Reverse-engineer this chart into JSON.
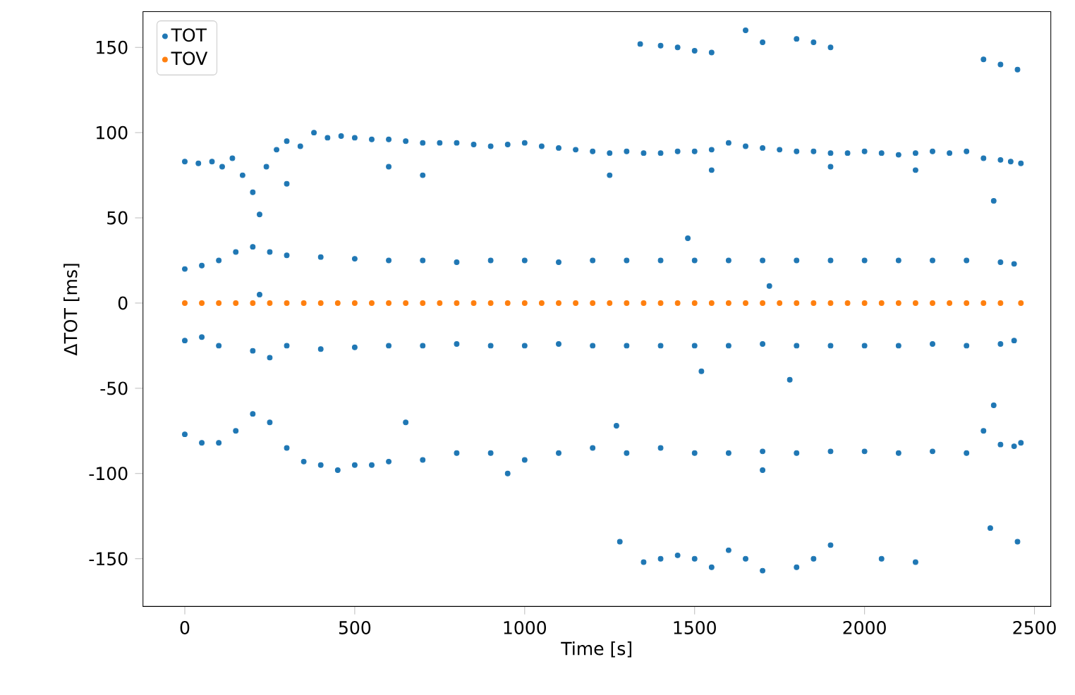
{
  "chart_data": {
    "type": "scatter",
    "xlabel": "Time [s]",
    "ylabel": "ΔTOT [ms]",
    "xlim": [
      -123,
      2548
    ],
    "ylim": [
      -178,
      171
    ],
    "xticks": [
      0,
      500,
      1000,
      1500,
      2000,
      2500
    ],
    "yticks": [
      -150,
      -100,
      -50,
      0,
      50,
      100,
      150
    ],
    "legend": "top left",
    "grid": false,
    "series": [
      {
        "name": "TOT",
        "color": "#1f77b4",
        "x": [
          0,
          40,
          80,
          110,
          140,
          170,
          200,
          220,
          240,
          270,
          300,
          340,
          380,
          420,
          460,
          500,
          550,
          600,
          650,
          700,
          750,
          800,
          850,
          900,
          950,
          1000,
          1050,
          1100,
          1150,
          1200,
          1250,
          1300,
          1350,
          1400,
          1450,
          1500,
          1550,
          1600,
          1650,
          1700,
          1750,
          1800,
          1850,
          1900,
          1950,
          2000,
          2050,
          2100,
          2150,
          2200,
          2250,
          2300,
          2350,
          2380,
          2400,
          2430,
          2460,
          300,
          600,
          1250,
          1900,
          2150,
          1550,
          700,
          1340,
          1400,
          1450,
          1500,
          1550,
          1650,
          1700,
          1800,
          1850,
          1900,
          2350,
          2400,
          2450,
          0,
          50,
          100,
          150,
          200,
          250,
          300,
          400,
          500,
          600,
          700,
          800,
          900,
          1000,
          1100,
          1200,
          1300,
          1400,
          1480,
          1500,
          1600,
          1700,
          1720,
          1800,
          1900,
          2000,
          2100,
          2200,
          2300,
          2400,
          2440,
          220,
          0,
          50,
          100,
          200,
          250,
          300,
          400,
          500,
          600,
          700,
          800,
          900,
          1000,
          1100,
          1200,
          1300,
          1400,
          1500,
          1520,
          1600,
          1700,
          1780,
          1800,
          1900,
          2000,
          2100,
          2200,
          2300,
          2400,
          2440,
          2380,
          0,
          50,
          100,
          150,
          200,
          250,
          300,
          350,
          400,
          450,
          500,
          550,
          600,
          650,
          700,
          800,
          900,
          1000,
          1100,
          1200,
          1270,
          1300,
          1400,
          1500,
          1600,
          1700,
          1800,
          1900,
          2000,
          2100,
          2200,
          2300,
          2350,
          2400,
          2440,
          2460,
          950,
          1700,
          1280,
          1350,
          1400,
          1450,
          1500,
          1550,
          1600,
          1650,
          1700,
          1800,
          1850,
          1900,
          2050,
          2150,
          2370,
          2450
        ],
        "values": [
          83,
          82,
          83,
          80,
          85,
          75,
          65,
          52,
          80,
          90,
          95,
          92,
          100,
          97,
          98,
          97,
          96,
          96,
          95,
          94,
          94,
          94,
          93,
          92,
          93,
          94,
          92,
          91,
          90,
          89,
          88,
          89,
          88,
          88,
          89,
          89,
          90,
          94,
          92,
          91,
          90,
          89,
          89,
          88,
          88,
          89,
          88,
          87,
          88,
          89,
          88,
          89,
          85,
          60,
          84,
          83,
          82,
          70,
          80,
          75,
          80,
          78,
          78,
          75,
          152,
          151,
          150,
          148,
          147,
          160,
          153,
          155,
          153,
          150,
          143,
          140,
          137,
          20,
          22,
          25,
          30,
          33,
          30,
          28,
          27,
          26,
          25,
          25,
          24,
          25,
          25,
          24,
          25,
          25,
          25,
          38,
          25,
          25,
          25,
          10,
          25,
          25,
          25,
          25,
          25,
          25,
          24,
          23,
          5,
          -22,
          -20,
          -25,
          -28,
          -32,
          -25,
          -27,
          -26,
          -25,
          -25,
          -24,
          -25,
          -25,
          -24,
          -25,
          -25,
          -25,
          -25,
          -40,
          -25,
          -24,
          -45,
          -25,
          -25,
          -25,
          -25,
          -24,
          -25,
          -24,
          -22,
          -60,
          -77,
          -82,
          -82,
          -75,
          -65,
          -70,
          -85,
          -93,
          -95,
          -98,
          -95,
          -95,
          -93,
          -70,
          -92,
          -88,
          -88,
          -92,
          -88,
          -85,
          -72,
          -88,
          -85,
          -88,
          -88,
          -87,
          -88,
          -87,
          -87,
          -88,
          -87,
          -88,
          -75,
          -83,
          -84,
          -82,
          -100,
          -98,
          -140,
          -152,
          -150,
          -148,
          -150,
          -155,
          -145,
          -150,
          -157,
          -155,
          -150,
          -142,
          -150,
          -152,
          -132,
          -140
        ]
      },
      {
        "name": "TOV",
        "color": "#ff7f0e",
        "x": [
          0,
          50,
          100,
          150,
          200,
          250,
          300,
          350,
          400,
          450,
          500,
          550,
          600,
          650,
          700,
          750,
          800,
          850,
          900,
          950,
          1000,
          1050,
          1100,
          1150,
          1200,
          1250,
          1300,
          1350,
          1400,
          1450,
          1500,
          1550,
          1600,
          1650,
          1700,
          1750,
          1800,
          1850,
          1900,
          1950,
          2000,
          2050,
          2100,
          2150,
          2200,
          2250,
          2300,
          2350,
          2400,
          2460
        ],
        "values": [
          0,
          0,
          0,
          0,
          0,
          0,
          0,
          0,
          0,
          0,
          0,
          0,
          0,
          0,
          0,
          0,
          0,
          0,
          0,
          0,
          0,
          0,
          0,
          0,
          0,
          0,
          0,
          0,
          0,
          0,
          0,
          0,
          0,
          0,
          0,
          0,
          0,
          0,
          0,
          0,
          0,
          0,
          0,
          0,
          0,
          0,
          0,
          0,
          0,
          0
        ]
      }
    ]
  }
}
